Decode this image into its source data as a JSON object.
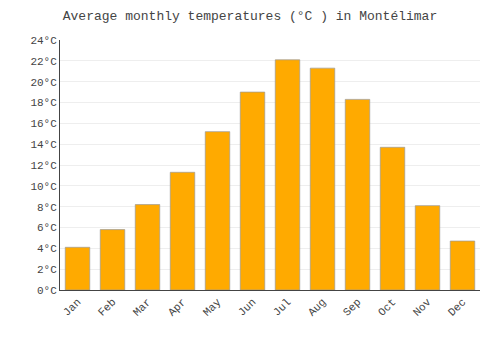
{
  "chart_data": {
    "type": "bar",
    "title": "Average monthly temperatures (°C ) in Montélimar",
    "categories": [
      "Jan",
      "Feb",
      "Mar",
      "Apr",
      "May",
      "Jun",
      "Jul",
      "Aug",
      "Sep",
      "Oct",
      "Nov",
      "Dec"
    ],
    "values": [
      4.1,
      5.8,
      8.2,
      11.3,
      15.2,
      19.0,
      22.1,
      21.3,
      18.3,
      13.7,
      8.1,
      4.7
    ],
    "color": "#FFAA00",
    "ylim": [
      0,
      24
    ],
    "yticks": [
      {
        "value": 0,
        "label": "0°C"
      },
      {
        "value": 2,
        "label": "2°C"
      },
      {
        "value": 4,
        "label": "4°C"
      },
      {
        "value": 6,
        "label": "6°C"
      },
      {
        "value": 8,
        "label": "8°C"
      },
      {
        "value": 10,
        "label": "10°C"
      },
      {
        "value": 12,
        "label": "12°C"
      },
      {
        "value": 14,
        "label": "14°C"
      },
      {
        "value": 16,
        "label": "16°C"
      },
      {
        "value": 18,
        "label": "18°C"
      },
      {
        "value": 20,
        "label": "20°C"
      },
      {
        "value": 22,
        "label": "22°C"
      },
      {
        "value": 24,
        "label": "24°C"
      }
    ],
    "grid": true
  }
}
